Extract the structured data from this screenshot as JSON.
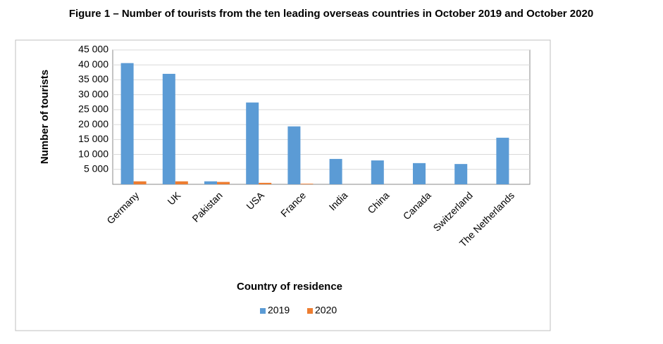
{
  "chart_data": {
    "type": "bar",
    "title": "Figure 1 – Number of tourists from the ten leading overseas countries in October 2019 and October 2020",
    "x_label": "Country of residence",
    "y_label": "Number of tourists",
    "categories": [
      "Germany",
      "UK",
      "Pakistan",
      "USA",
      "France",
      "India",
      "China",
      "Canada",
      "Switzerland",
      "The Netherlands"
    ],
    "series": [
      {
        "name": "2019",
        "color": "#5b9bd5",
        "values": [
          40600,
          37000,
          1000,
          27400,
          19400,
          8500,
          8000,
          7100,
          6800,
          15600
        ]
      },
      {
        "name": "2020",
        "color": "#ed7d31",
        "values": [
          1000,
          1000,
          800,
          500,
          200,
          0,
          0,
          0,
          0,
          0
        ]
      }
    ],
    "ylim": [
      0,
      45000
    ],
    "yticks": [
      {
        "value": 5000,
        "label": "5 000"
      },
      {
        "value": 10000,
        "label": "10 000"
      },
      {
        "value": 15000,
        "label": "15 000"
      },
      {
        "value": 20000,
        "label": "20 000"
      },
      {
        "value": 25000,
        "label": "25 000"
      },
      {
        "value": 30000,
        "label": "30 000"
      },
      {
        "value": 35000,
        "label": "35 000"
      },
      {
        "value": 40000,
        "label": "40 000"
      },
      {
        "value": 45000,
        "label": "45 000"
      }
    ],
    "grid": true,
    "legend": "bottom"
  }
}
